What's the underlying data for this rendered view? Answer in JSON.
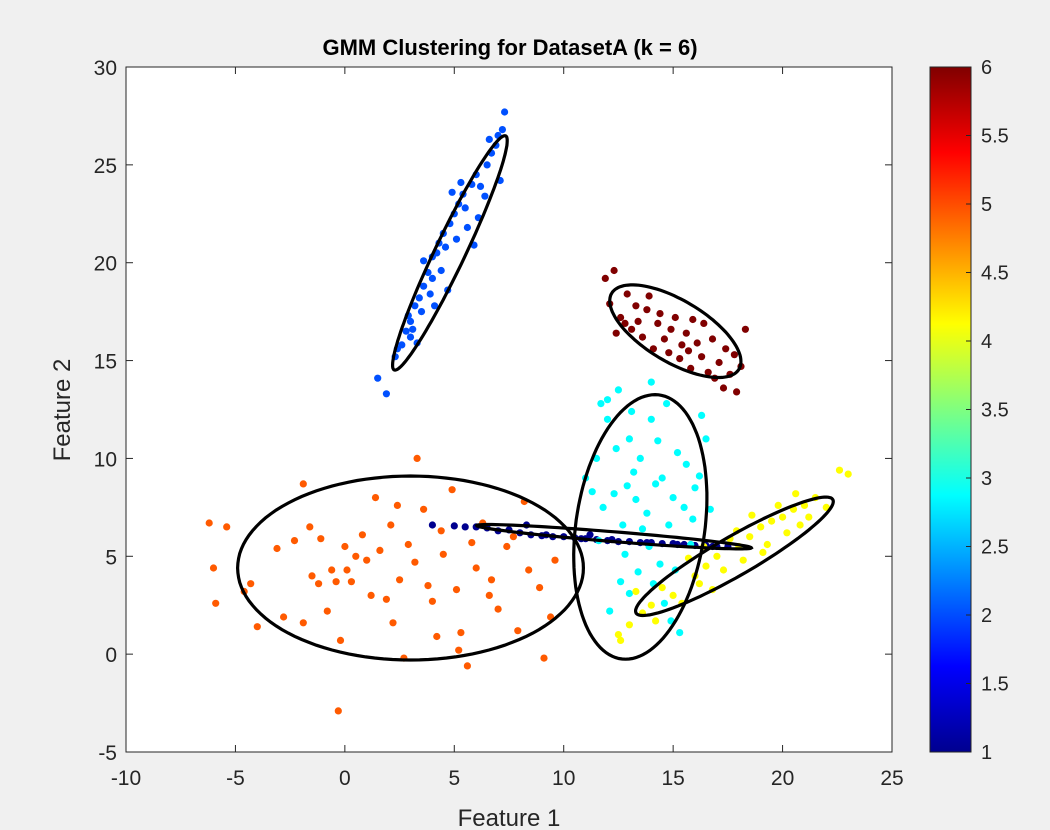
{
  "window": {
    "background": "#f0f0f0"
  },
  "chart_data": {
    "type": "scatter",
    "title": "GMM Clustering for DatasetA (k = 6)",
    "xlabel": "Feature 1",
    "ylabel": "Feature 2",
    "xlim": [
      -10,
      25
    ],
    "ylim": [
      -5,
      30
    ],
    "xticks": [
      -10,
      -5,
      0,
      5,
      10,
      15,
      20,
      25
    ],
    "yticks": [
      -5,
      0,
      5,
      10,
      15,
      20,
      25,
      30
    ],
    "grid": false,
    "colormap": "jet",
    "colorbar": {
      "range": [
        1,
        6
      ],
      "ticks": [
        1,
        1.5,
        2,
        2.5,
        3,
        3.5,
        4,
        4.5,
        5,
        5.5,
        6
      ],
      "tick_labels": [
        "1",
        "1.5",
        "2",
        "2.5",
        "3",
        "3.5",
        "4",
        "4.5",
        "5",
        "5.5",
        "6"
      ]
    },
    "clusters": [
      {
        "cluster": 1,
        "color": "#00008f",
        "points": [
          [
            4,
            6.6
          ],
          [
            5,
            6.55
          ],
          [
            5.5,
            6.5
          ],
          [
            6,
            6.5
          ],
          [
            7,
            6.3
          ],
          [
            8,
            6.2
          ],
          [
            8.5,
            6.1
          ],
          [
            9,
            6.05
          ],
          [
            9.5,
            6
          ],
          [
            10,
            6
          ],
          [
            10.5,
            5.95
          ],
          [
            11,
            5.9
          ],
          [
            11.5,
            5.85
          ],
          [
            12,
            5.8
          ],
          [
            12.5,
            5.75
          ],
          [
            13,
            5.75
          ],
          [
            13.5,
            5.7
          ],
          [
            14,
            5.7
          ],
          [
            14.5,
            5.65
          ],
          [
            15,
            5.65
          ],
          [
            15.5,
            5.6
          ],
          [
            16,
            5.55
          ],
          [
            16.5,
            5.55
          ],
          [
            17,
            5.5
          ],
          [
            17.5,
            5.5
          ],
          [
            6.5,
            6.45
          ],
          [
            7.5,
            6.35
          ],
          [
            9.2,
            6.1
          ],
          [
            10.8,
            5.9
          ],
          [
            12.2,
            5.85
          ],
          [
            13.8,
            5.7
          ],
          [
            15.2,
            5.6
          ],
          [
            16.8,
            5.5
          ],
          [
            8.3,
            6.6
          ],
          [
            11.2,
            6.1
          ]
        ],
        "ellipse": {
          "cx": 12.3,
          "cy": 6.0,
          "rx": 6.3,
          "ry": 0.25,
          "angle_deg": -5.2
        }
      },
      {
        "cluster": 2,
        "color": "#0050ff",
        "points": [
          [
            1.5,
            14.1
          ],
          [
            1.9,
            13.3
          ],
          [
            2.3,
            15.2
          ],
          [
            2.6,
            15.8
          ],
          [
            2.8,
            16.5
          ],
          [
            3,
            17
          ],
          [
            3,
            16.2
          ],
          [
            3.2,
            17.8
          ],
          [
            3.4,
            18.2
          ],
          [
            3.6,
            18.8
          ],
          [
            3.5,
            17.5
          ],
          [
            3.8,
            19.5
          ],
          [
            4,
            19.2
          ],
          [
            4,
            20.3
          ],
          [
            4.2,
            20.5
          ],
          [
            4.3,
            21
          ],
          [
            4.5,
            21.5
          ],
          [
            4.6,
            20.8
          ],
          [
            4.8,
            22
          ],
          [
            5,
            22.5
          ],
          [
            5.2,
            23
          ],
          [
            5.4,
            23.5
          ],
          [
            5.5,
            22.8
          ],
          [
            5.8,
            24
          ],
          [
            6,
            24.5
          ],
          [
            6.2,
            23.9
          ],
          [
            6.5,
            25
          ],
          [
            6.7,
            25.6
          ],
          [
            6.9,
            26
          ],
          [
            7,
            26.5
          ],
          [
            7.2,
            26.8
          ],
          [
            7.3,
            27.7
          ],
          [
            7.1,
            24.2
          ],
          [
            6.4,
            23.4
          ],
          [
            5.6,
            21.8
          ],
          [
            5.1,
            21.2
          ],
          [
            4.4,
            19.6
          ],
          [
            3.9,
            18.4
          ],
          [
            3.1,
            16.6
          ],
          [
            2.4,
            15.6
          ],
          [
            3.3,
            15.9
          ],
          [
            4.7,
            18.6
          ],
          [
            5.9,
            20.9
          ],
          [
            6.1,
            22.3
          ],
          [
            4.1,
            17.8
          ],
          [
            2.9,
            17.3
          ],
          [
            3.6,
            20.1
          ],
          [
            5.3,
            24.1
          ],
          [
            4.9,
            23.6
          ],
          [
            6.6,
            26.3
          ]
        ],
        "ellipse": {
          "cx": 4.8,
          "cy": 20.5,
          "rx": 6.5,
          "ry": 0.7,
          "angle_deg": 67
        }
      },
      {
        "cluster": 3,
        "color": "#00ffff",
        "points": [
          [
            11,
            9
          ],
          [
            11.5,
            10
          ],
          [
            12,
            13
          ],
          [
            12.5,
            13.5
          ],
          [
            13,
            11
          ],
          [
            13.5,
            10
          ],
          [
            14,
            12
          ],
          [
            14.5,
            9
          ],
          [
            15,
            8
          ],
          [
            15.5,
            7.5
          ],
          [
            16,
            8.5
          ],
          [
            16.5,
            11
          ],
          [
            12,
            12
          ],
          [
            11.8,
            7.5
          ],
          [
            12.3,
            8.2
          ],
          [
            13.8,
            7.2
          ],
          [
            13.2,
            9.3
          ],
          [
            14.2,
            8.7
          ],
          [
            15.2,
            10.3
          ],
          [
            16.2,
            9.1
          ],
          [
            12.7,
            6.6
          ],
          [
            13.6,
            6.4
          ],
          [
            14.8,
            6.6
          ],
          [
            11.6,
            5.8
          ],
          [
            12.8,
            5.1
          ],
          [
            13.4,
            4.2
          ],
          [
            14.1,
            3.6
          ],
          [
            14.6,
            2.6
          ],
          [
            14.9,
            1.7
          ],
          [
            15.3,
            1.1
          ],
          [
            12.1,
            2.2
          ],
          [
            13,
            3.1
          ],
          [
            14.4,
            4.6
          ],
          [
            15.8,
            5.6
          ],
          [
            12.4,
            10.5
          ],
          [
            13.1,
            12.4
          ],
          [
            14.3,
            10.9
          ],
          [
            15.6,
            9.7
          ],
          [
            16.7,
            7.4
          ],
          [
            12.9,
            8.6
          ],
          [
            11.3,
            8.3
          ],
          [
            15.9,
            6.9
          ],
          [
            13.9,
            5.5
          ],
          [
            14.7,
            12.8
          ],
          [
            16.3,
            12.2
          ],
          [
            11.7,
            12.8
          ],
          [
            14,
            13.9
          ],
          [
            13.3,
            7.9
          ],
          [
            15.1,
            4.3
          ],
          [
            12.6,
            3.7
          ]
        ],
        "ellipse": {
          "cx": 13.5,
          "cy": 6.5,
          "rx": 6.8,
          "ry": 2.95,
          "angle_deg": 83
        }
      },
      {
        "cluster": 4,
        "color": "#ffff00",
        "points": [
          [
            12.5,
            1
          ],
          [
            12.6,
            0.7
          ],
          [
            13,
            1.5
          ],
          [
            14,
            2.5
          ],
          [
            15,
            3
          ],
          [
            16,
            4
          ],
          [
            16.5,
            4.5
          ],
          [
            17,
            5
          ],
          [
            18,
            5.5
          ],
          [
            18.5,
            6
          ],
          [
            19,
            6.5
          ],
          [
            19.5,
            6.8
          ],
          [
            20,
            7
          ],
          [
            20.5,
            7.4
          ],
          [
            21,
            7.6
          ],
          [
            21.5,
            8
          ],
          [
            22,
            7.5
          ],
          [
            22.6,
            9.4
          ],
          [
            23,
            9.2
          ],
          [
            14.5,
            3.4
          ],
          [
            15.4,
            2.6
          ],
          [
            16.2,
            3.6
          ],
          [
            17.3,
            4.3
          ],
          [
            17.6,
            5.9
          ],
          [
            18.2,
            4.8
          ],
          [
            19.3,
            5.6
          ],
          [
            20.2,
            6.2
          ],
          [
            20.8,
            6.6
          ],
          [
            13.6,
            2.1
          ],
          [
            16.8,
            3.3
          ],
          [
            18.6,
            7.1
          ],
          [
            19.8,
            7.6
          ],
          [
            21.2,
            7
          ],
          [
            15.7,
            4.9
          ],
          [
            17.9,
            6.3
          ],
          [
            14.2,
            1.7
          ],
          [
            13.3,
            3.2
          ],
          [
            16.4,
            5.5
          ],
          [
            19.1,
            5.2
          ],
          [
            20.6,
            8.2
          ]
        ],
        "ellipse": {
          "cx": 17.8,
          "cy": 5.0,
          "rx": 5.35,
          "ry": 0.97,
          "angle_deg": 33
        }
      },
      {
        "cluster": 5,
        "color": "#ff5a00",
        "points": [
          [
            -6.2,
            6.7
          ],
          [
            -6,
            4.4
          ],
          [
            -5.9,
            2.6
          ],
          [
            -5.4,
            6.5
          ],
          [
            -4.6,
            3.2
          ],
          [
            -4.3,
            3.6
          ],
          [
            -4,
            1.4
          ],
          [
            -2.8,
            1.9
          ],
          [
            -2.3,
            5.8
          ],
          [
            -1.9,
            8.7
          ],
          [
            -1.9,
            1.6
          ],
          [
            -1.5,
            4
          ],
          [
            -1.2,
            3.6
          ],
          [
            -1.1,
            5.9
          ],
          [
            -0.6,
            4.3
          ],
          [
            -0.4,
            3.7
          ],
          [
            -0.2,
            0.7
          ],
          [
            -0.3,
            -2.9
          ],
          [
            0,
            5.5
          ],
          [
            0.1,
            4.3
          ],
          [
            0.3,
            3.7
          ],
          [
            0.5,
            5
          ],
          [
            1,
            4.8
          ],
          [
            1.2,
            3
          ],
          [
            1.6,
            5.3
          ],
          [
            1.9,
            2.8
          ],
          [
            2.1,
            6.6
          ],
          [
            2.5,
            3.8
          ],
          [
            2.7,
            -0.2
          ],
          [
            2.9,
            5.6
          ],
          [
            3.2,
            4.7
          ],
          [
            3.3,
            10
          ],
          [
            3.6,
            7.4
          ],
          [
            4,
            2.7
          ],
          [
            4.2,
            0.9
          ],
          [
            4.5,
            5.1
          ],
          [
            4.9,
            8.4
          ],
          [
            5.1,
            3.3
          ],
          [
            5.3,
            1.1
          ],
          [
            5.6,
            -0.6
          ],
          [
            6,
            4.4
          ],
          [
            6.3,
            6.7
          ],
          [
            6.7,
            3.8
          ],
          [
            7,
            2.3
          ],
          [
            7.4,
            5.5
          ],
          [
            7.9,
            1.2
          ],
          [
            8.2,
            7.8
          ],
          [
            8.4,
            4.3
          ],
          [
            8.9,
            3.4
          ],
          [
            9.1,
            -0.2
          ],
          [
            9.4,
            1.9
          ],
          [
            9.6,
            4.8
          ],
          [
            1.4,
            8
          ],
          [
            2.4,
            7.6
          ],
          [
            4.4,
            6.3
          ],
          [
            5.8,
            5.7
          ],
          [
            -0.8,
            2.2
          ],
          [
            0.8,
            6.1
          ],
          [
            3.8,
            3.5
          ],
          [
            6.6,
            3
          ],
          [
            -3.1,
            5.4
          ],
          [
            7.7,
            6
          ],
          [
            5.2,
            0.2
          ],
          [
            2.2,
            1.6
          ],
          [
            -1.6,
            6.5
          ]
        ],
        "ellipse": {
          "cx": 3.0,
          "cy": 4.4,
          "rx": 7.9,
          "ry": 4.7,
          "angle_deg": 0
        }
      },
      {
        "cluster": 6,
        "color": "#800000",
        "points": [
          [
            11.9,
            19.2
          ],
          [
            12.3,
            19.6
          ],
          [
            12.1,
            17.9
          ],
          [
            12.6,
            17.2
          ],
          [
            12.9,
            18.4
          ],
          [
            13.1,
            16.6
          ],
          [
            13.3,
            17.8
          ],
          [
            13.6,
            16.2
          ],
          [
            13.8,
            17.6
          ],
          [
            14.1,
            15.6
          ],
          [
            14.3,
            16.9
          ],
          [
            14.6,
            16.1
          ],
          [
            14.8,
            15.4
          ],
          [
            15.1,
            17.2
          ],
          [
            15.3,
            15.1
          ],
          [
            15.6,
            16.4
          ],
          [
            15.8,
            14.6
          ],
          [
            16.1,
            15.9
          ],
          [
            16.3,
            15.2
          ],
          [
            16.6,
            14.4
          ],
          [
            16.8,
            16.1
          ],
          [
            17.1,
            14.9
          ],
          [
            17.3,
            13.6
          ],
          [
            17.6,
            14.3
          ],
          [
            17.9,
            13.4
          ],
          [
            18.3,
            16.6
          ],
          [
            18.1,
            14.7
          ],
          [
            16.9,
            14.1
          ],
          [
            12.4,
            16.4
          ],
          [
            13.9,
            18.3
          ],
          [
            14.4,
            17.4
          ],
          [
            15.4,
            15.8
          ],
          [
            15.9,
            17.1
          ],
          [
            17.4,
            15.6
          ],
          [
            16.4,
            16.9
          ],
          [
            13.4,
            17
          ],
          [
            12.8,
            16.9
          ],
          [
            14.9,
            16.6
          ],
          [
            15.7,
            15.5
          ],
          [
            17.8,
            15.3
          ]
        ],
        "ellipse": {
          "cx": 15.1,
          "cy": 16.5,
          "rx": 3.5,
          "ry": 1.53,
          "angle_deg": -35
        }
      }
    ]
  }
}
